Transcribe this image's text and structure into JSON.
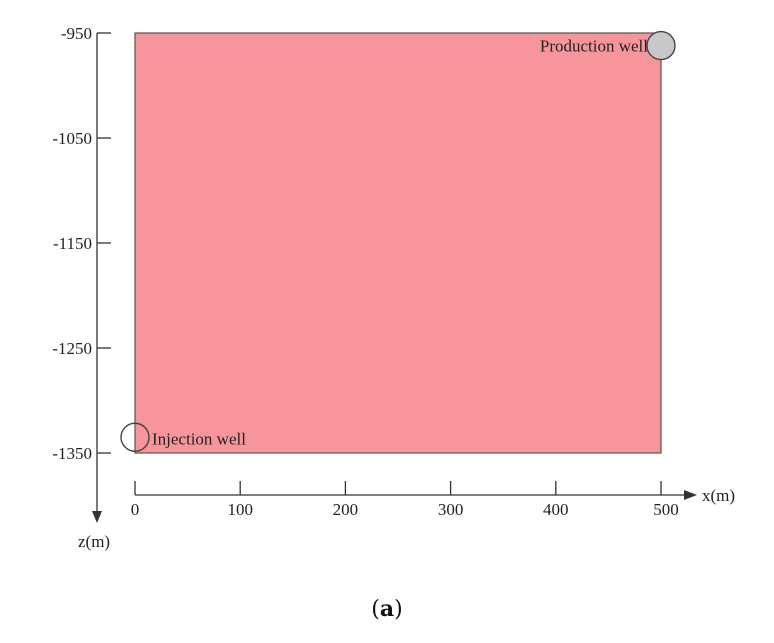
{
  "figure": {
    "caption_open": "(",
    "caption_letter": "a",
    "caption_close": ")"
  },
  "domain": {
    "fill_color": "#f7959c",
    "border_color": "#555555",
    "x_range": [
      0,
      500
    ],
    "z_range": [
      -1350,
      -950
    ]
  },
  "z_axis": {
    "label": "z(m)",
    "ticks": [
      -950,
      -1050,
      -1150,
      -1250,
      -1350
    ],
    "tick_labels": [
      "-950",
      "-1050",
      "-1150",
      "-1250",
      "-1350"
    ]
  },
  "x_axis": {
    "label": "x(m)",
    "ticks": [
      0,
      100,
      200,
      300,
      400,
      500
    ],
    "tick_labels": [
      "0",
      "100",
      "200",
      "300",
      "400",
      "500"
    ]
  },
  "wells": {
    "production": {
      "label": "Production well",
      "x": 500,
      "z": -962,
      "fill": "#c8c8c8"
    },
    "injection": {
      "label": "Injection well",
      "x": 0,
      "z": -1335,
      "fill": "none"
    }
  }
}
